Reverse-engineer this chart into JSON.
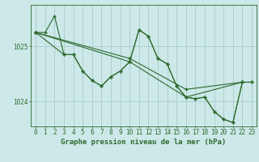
{
  "background_color": "#cce8e8",
  "grid_color": "#aacccc",
  "line_color": "#2d6a2d",
  "marker": "+",
  "markersize": 3,
  "linewidth": 0.8,
  "xlabel": "Graphe pression niveau de la mer (hPa)",
  "xlabel_fontsize": 6.5,
  "tick_fontsize": 5.5,
  "ytick_values": [
    1024,
    1025
  ],
  "ylim": [
    1023.55,
    1025.75
  ],
  "xlim": [
    -0.5,
    23.5
  ],
  "line_zigzag1_x": [
    0,
    1,
    2,
    3,
    4,
    5,
    6,
    7,
    8,
    9,
    10,
    11,
    12,
    13,
    14,
    15,
    16,
    17,
    18,
    19,
    20,
    21,
    22
  ],
  "line_zigzag1_y": [
    1025.25,
    1025.25,
    1025.55,
    1024.85,
    1024.85,
    1024.55,
    1024.38,
    1024.28,
    1024.45,
    1024.55,
    1024.72,
    1025.3,
    1025.18,
    1024.78,
    1024.68,
    1024.28,
    1024.08,
    1024.05,
    1024.08,
    1023.82,
    1023.68,
    1023.62,
    1024.35
  ],
  "line_zigzag2_x": [
    0,
    3,
    4,
    5,
    6,
    7,
    8,
    9,
    10,
    11,
    12,
    13,
    14,
    15,
    16,
    17,
    18,
    19,
    20,
    21,
    22
  ],
  "line_zigzag2_y": [
    1025.25,
    1024.85,
    1024.85,
    1024.55,
    1024.38,
    1024.28,
    1024.45,
    1024.55,
    1024.72,
    1025.3,
    1025.18,
    1024.78,
    1024.68,
    1024.28,
    1024.08,
    1024.05,
    1024.08,
    1023.82,
    1023.68,
    1023.62,
    1024.35
  ],
  "line_straight1_x": [
    0,
    10,
    16,
    22,
    23
  ],
  "line_straight1_y": [
    1025.25,
    1024.72,
    1024.08,
    1024.35,
    1024.35
  ],
  "line_straight2_x": [
    0,
    10,
    16,
    22,
    23
  ],
  "line_straight2_y": [
    1025.25,
    1024.78,
    1024.22,
    1024.35,
    1024.35
  ]
}
